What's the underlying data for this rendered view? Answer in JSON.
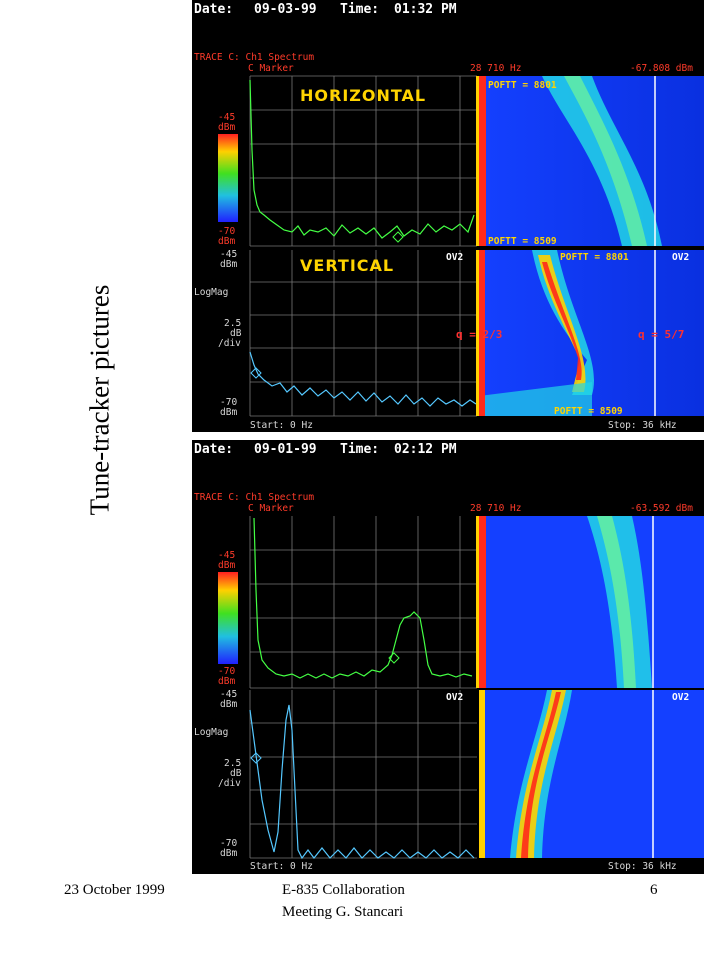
{
  "slide_title": "Tune-tracker pictures",
  "footer": {
    "date": "23 October 1999",
    "meeting_line1": "E-835 Collaboration",
    "meeting_line2": "Meeting   G. Stancari",
    "page_number": "6"
  },
  "screens": [
    {
      "date_label": "Date:",
      "date_value": "09-03-99",
      "time_label": "Time:",
      "time_value": "01:32 PM",
      "trace_label": "TRACE C: Ch1 Spectrum",
      "marker_label": "C Marker",
      "marker_freq": "28 710 Hz",
      "marker_level": "-67.808 dBm",
      "top_scale": "-45",
      "unit": "dBm",
      "bottom_scale": "-70",
      "lower_top_scale": "-45",
      "logmag": "LogMag",
      "div_value": "2.5",
      "div_unit": "dB",
      "div_label": "/div",
      "lower_bottom_scale": "-70",
      "start": "Start: 0 Hz",
      "stop": "Stop: 36 kHz",
      "horizontal_label": "HORIZONTAL",
      "vertical_label": "VERTICAL",
      "ov2": "OV2",
      "pofft_top": "POFTT = 8801",
      "pofft_mid": "POFTT = 8509",
      "pofft_right": "POFTT = 8801",
      "pofft_bottom": "POFTT = 8509",
      "q_left": "q = 2/3",
      "q_right": "q = 5/7"
    },
    {
      "date_label": "Date:",
      "date_value": "09-01-99",
      "time_label": "Time:",
      "time_value": "02:12 PM",
      "trace_label": "TRACE C: Ch1 Spectrum",
      "marker_label": "C Marker",
      "marker_freq": "28 710 Hz",
      "marker_level": "-63.592 dBm",
      "top_scale": "-45",
      "unit": "dBm",
      "bottom_scale": "-70",
      "lower_top_scale": "-45",
      "logmag": "LogMag",
      "div_value": "2.5",
      "div_unit": "dB",
      "div_label": "/div",
      "lower_bottom_scale": "-70",
      "start": "Start: 0 Hz",
      "stop": "Stop: 36 kHz",
      "ov2": "OV2"
    }
  ]
}
